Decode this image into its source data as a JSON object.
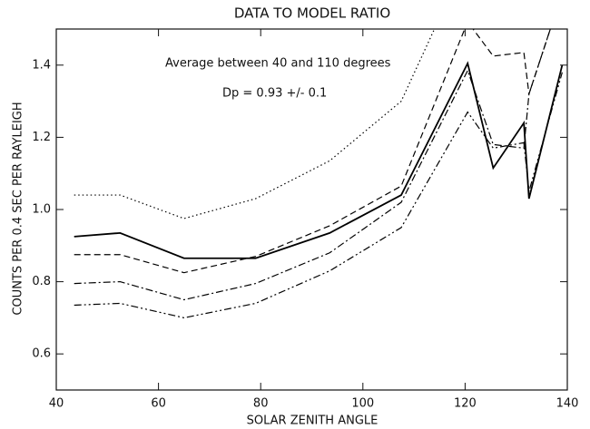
{
  "chart_data": {
    "type": "line",
    "title": "DATA TO MODEL RATIO",
    "x_label": "SOLAR ZENITH ANGLE",
    "y_label": "COUNTS PER 0.4 SEC PER RAYLEIGH",
    "annotations": [
      "Average between 40 and 110 degrees",
      "Dp = 0.93 +/- 0.1"
    ],
    "x": [
      43.5,
      52.5,
      65,
      79,
      93.5,
      107.5,
      120.5,
      125.5,
      131.5,
      132.5,
      139
    ],
    "series": [
      {
        "color": "#000000",
        "dash": "none",
        "values": [
          0.925,
          0.935,
          0.865,
          0.865,
          0.935,
          1.04,
          1.405,
          1.115,
          1.24,
          1.03,
          1.4
        ]
      },
      {
        "color": "#000000",
        "dash": "7,4",
        "values": [
          0.875,
          0.875,
          0.825,
          0.87,
          0.955,
          1.065,
          1.52,
          1.425,
          1.435,
          1.32,
          1.6
        ]
      },
      {
        "color": "#000000",
        "dash": "1.5,3",
        "values": [
          1.04,
          1.04,
          0.975,
          1.03,
          1.135,
          1.3,
          1.7,
          null,
          null,
          null,
          null
        ]
      },
      {
        "color": "#000000",
        "dash": "8,3,2,3",
        "values": [
          0.795,
          0.8,
          0.75,
          0.795,
          0.88,
          1.02,
          1.385,
          1.18,
          1.17,
          1.32,
          1.6
        ]
      },
      {
        "color": "#000000",
        "dash": "8,3,2,3,2,3",
        "values": [
          0.735,
          0.74,
          0.7,
          0.74,
          0.83,
          0.95,
          1.27,
          1.17,
          1.185,
          1.05,
          1.38
        ]
      }
    ],
    "xlim": [
      40,
      140
    ],
    "ylim": [
      0.5,
      1.5
    ],
    "xticks": [
      40,
      60,
      80,
      100,
      120,
      140
    ],
    "yticks": [
      0.6,
      0.8,
      {
        "value": 1,
        "label": "1.0"
      },
      1.2,
      1.4
    ]
  }
}
